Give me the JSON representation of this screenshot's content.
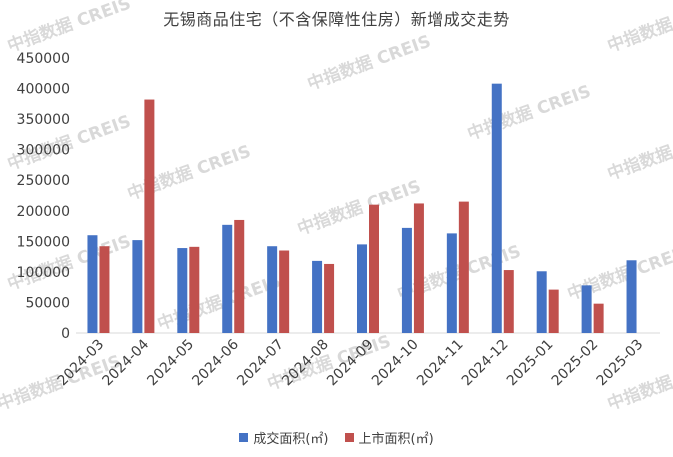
{
  "chart_data": {
    "type": "bar",
    "title": "无锡商品住宅（不含保障性住房）新增成交走势",
    "categories": [
      "2024-03",
      "2024-04",
      "2024-05",
      "2024-06",
      "2024-07",
      "2024-08",
      "2024-09",
      "2024-10",
      "2024-11",
      "2024-12",
      "2025-01",
      "2025-02",
      "2025-03"
    ],
    "series": [
      {
        "name": "成交面积(㎡)",
        "color": "#4472C4",
        "values": [
          160000,
          152000,
          139000,
          177000,
          142000,
          118000,
          145000,
          172000,
          163000,
          408000,
          101000,
          78000,
          119000
        ]
      },
      {
        "name": "上市面积(㎡)",
        "color": "#C0504D",
        "values": [
          142000,
          382000,
          141000,
          185000,
          135000,
          113000,
          210000,
          212000,
          215000,
          103000,
          71000,
          48000,
          null
        ]
      }
    ],
    "y_ticks": [
      "0",
      "50000",
      "100000",
      "150000",
      "200000",
      "250000",
      "300000",
      "350000",
      "400000",
      "450000"
    ],
    "ylim": [
      0,
      450000
    ],
    "grid": false,
    "legend_position": "bottom"
  },
  "watermark_text": "中指数据 CREIS"
}
